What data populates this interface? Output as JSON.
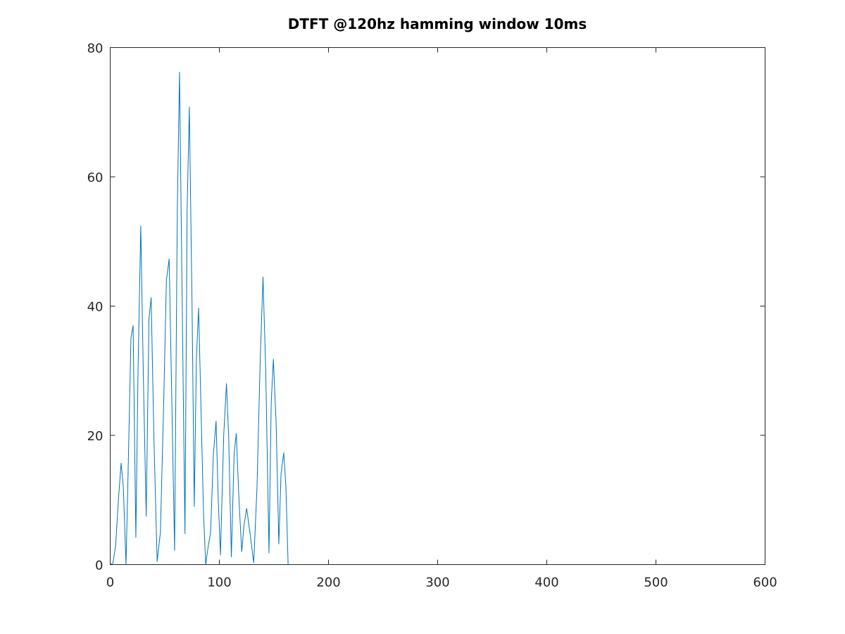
{
  "chart_data": {
    "type": "line",
    "title": "DTFT @120hz hamming window 10ms",
    "xlabel": "",
    "ylabel": "",
    "xlim": [
      0,
      600
    ],
    "ylim": [
      0,
      80
    ],
    "x_ticks": [
      0,
      100,
      200,
      300,
      400,
      500,
      600
    ],
    "y_ticks": [
      0,
      20,
      40,
      60,
      80
    ],
    "x_tick_labels": [
      "0",
      "100",
      "200",
      "300",
      "400",
      "500",
      "600"
    ],
    "y_tick_labels": [
      "0",
      "20",
      "40",
      "60",
      "80"
    ],
    "grid": false,
    "legend": "none",
    "series": [
      {
        "color": "#0072BD",
        "x": [
          0,
          2.5,
          5,
          7.5,
          10,
          12,
          14.5,
          16.5,
          19,
          21,
          23.5,
          25.5,
          28,
          30.5,
          33,
          35.5,
          37.5,
          40,
          43,
          46,
          49,
          51.5,
          54,
          56.5,
          59,
          61.5,
          63.5,
          66,
          68.5,
          70.5,
          72.5,
          75,
          77,
          79,
          81,
          83.5,
          85.5,
          87.5,
          89.5,
          92,
          94.5,
          97,
          99,
          101,
          104,
          106.5,
          108.5,
          111,
          113.5,
          115.5,
          118,
          120.5,
          122.5,
          125,
          128,
          131.5,
          134.5,
          137.5,
          140,
          142.5,
          145.5,
          147.5,
          149.5,
          152,
          154.5,
          156.5,
          159,
          161,
          163,
          165,
          200,
          300,
          400,
          500,
          600
        ],
        "y": [
          0,
          0.2,
          3,
          10,
          15.7,
          12,
          0,
          15,
          35,
          37,
          4.2,
          30,
          52.4,
          28,
          7.5,
          38,
          41.3,
          20,
          0.5,
          5,
          25,
          44,
          47.3,
          25,
          2.2,
          55,
          76.2,
          40,
          4.8,
          55,
          70.8,
          40,
          9,
          32,
          39.7,
          22,
          8,
          0,
          2.5,
          5,
          17,
          22.2,
          10,
          1.5,
          20,
          28,
          20,
          1.2,
          17,
          20.3,
          10,
          2,
          6,
          8.7,
          5,
          0.3,
          12,
          32,
          44.5,
          30,
          1.8,
          25,
          31.8,
          22,
          3.2,
          14,
          17.3,
          12,
          0,
          0,
          0,
          0,
          0,
          0,
          0
        ]
      }
    ]
  }
}
